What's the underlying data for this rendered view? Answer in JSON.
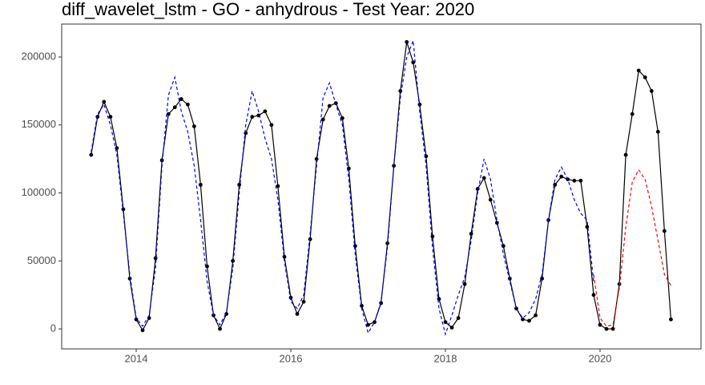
{
  "chart_data": {
    "type": "line",
    "title": "diff_wavelet_lstm - GO - anhydrous - Test Year: 2020",
    "x": [
      2013.417,
      2013.5,
      2013.583,
      2013.667,
      2013.75,
      2013.833,
      2013.917,
      2014,
      2014.083,
      2014.167,
      2014.25,
      2014.333,
      2014.417,
      2014.5,
      2014.583,
      2014.667,
      2014.75,
      2014.833,
      2014.917,
      2015,
      2015.083,
      2015.167,
      2015.25,
      2015.333,
      2015.417,
      2015.5,
      2015.583,
      2015.667,
      2015.75,
      2015.833,
      2015.917,
      2016,
      2016.083,
      2016.167,
      2016.25,
      2016.333,
      2016.417,
      2016.5,
      2016.583,
      2016.667,
      2016.75,
      2016.833,
      2016.917,
      2017,
      2017.083,
      2017.167,
      2017.25,
      2017.333,
      2017.417,
      2017.5,
      2017.583,
      2017.667,
      2017.75,
      2017.833,
      2017.917,
      2018,
      2018.083,
      2018.167,
      2018.25,
      2018.333,
      2018.417,
      2018.5,
      2018.583,
      2018.667,
      2018.75,
      2018.833,
      2018.917,
      2019,
      2019.083,
      2019.167,
      2019.25,
      2019.333,
      2019.417,
      2019.5,
      2019.583,
      2019.667,
      2019.75,
      2019.833,
      2019.917,
      2020,
      2020.083,
      2020.167,
      2020.25,
      2020.333,
      2020.417,
      2020.5,
      2020.583,
      2020.667,
      2020.75,
      2020.833,
      2020.917
    ],
    "series": [
      {
        "color": "#000000",
        "line_style": "solid",
        "markers": true,
        "values": [
          128000,
          156000,
          167000,
          156000,
          133000,
          88000,
          37000,
          7000,
          -1000,
          8000,
          52000,
          124000,
          158000,
          163000,
          169000,
          165000,
          149000,
          106000,
          46000,
          10000,
          0,
          11000,
          50000,
          106000,
          144000,
          156000,
          157000,
          160000,
          150000,
          105000,
          53000,
          23000,
          11000,
          20000,
          66000,
          125000,
          154000,
          164000,
          166000,
          155000,
          118000,
          61000,
          17000,
          3000,
          5000,
          19000,
          63000,
          120000,
          175000,
          211000,
          196000,
          165000,
          127000,
          68000,
          22000,
          5000,
          1000,
          8000,
          33000,
          70000,
          103000,
          111000,
          95000,
          78000,
          61000,
          37000,
          15000,
          7000,
          6000,
          10000,
          37000,
          80000,
          106000,
          112000,
          110000,
          109000,
          109000,
          75000,
          25000,
          3000,
          0,
          0,
          33000,
          128000,
          158000,
          190000,
          185000,
          175000,
          145000,
          72000,
          7000
        ]
      },
      {
        "color": "#0000ff",
        "line_style": "dashed",
        "markers": false,
        "values": [
          130000,
          158000,
          165000,
          150000,
          128000,
          85000,
          40000,
          8000,
          2000,
          10000,
          45000,
          120000,
          172000,
          185000,
          160000,
          145000,
          120000,
          80000,
          35000,
          10000,
          3000,
          12000,
          45000,
          100000,
          150000,
          175000,
          160000,
          140000,
          125000,
          95000,
          50000,
          20000,
          15000,
          25000,
          70000,
          120000,
          170000,
          181000,
          165000,
          150000,
          110000,
          55000,
          15000,
          -3000,
          5000,
          20000,
          60000,
          120000,
          170000,
          200000,
          212000,
          160000,
          120000,
          60000,
          15000,
          -4000,
          10000,
          25000,
          38000,
          65000,
          100000,
          125000,
          110000,
          80000,
          55000,
          35000,
          15000,
          8000,
          12000,
          22000,
          40000,
          80000,
          110000,
          119000,
          110000,
          95000,
          85000,
          80000,
          35000,
          null,
          null,
          null,
          null,
          null,
          null,
          null,
          null,
          null,
          null,
          null,
          null
        ]
      },
      {
        "color": "#ff0000",
        "line_style": "dashed",
        "markers": false,
        "values": [
          null,
          null,
          null,
          null,
          null,
          null,
          null,
          null,
          null,
          null,
          null,
          null,
          null,
          null,
          null,
          null,
          null,
          null,
          null,
          null,
          null,
          null,
          null,
          null,
          null,
          null,
          null,
          null,
          null,
          null,
          null,
          null,
          null,
          null,
          null,
          null,
          null,
          null,
          null,
          null,
          null,
          null,
          null,
          null,
          null,
          null,
          null,
          null,
          null,
          null,
          null,
          null,
          null,
          null,
          null,
          null,
          null,
          null,
          null,
          null,
          null,
          null,
          null,
          null,
          null,
          null,
          null,
          null,
          null,
          null,
          null,
          null,
          null,
          null,
          null,
          null,
          null,
          null,
          40000,
          8000,
          2000,
          3000,
          30000,
          75000,
          108000,
          117000,
          110000,
          90000,
          65000,
          40000,
          32000
        ]
      }
    ],
    "xlim": [
      2013.036,
      2021.306
    ],
    "xticks": [
      2014,
      2016,
      2018,
      2020
    ],
    "ylim": [
      -14700,
      224200
    ],
    "yticks": [
      0,
      50000,
      100000,
      150000,
      200000
    ],
    "grid": false
  }
}
